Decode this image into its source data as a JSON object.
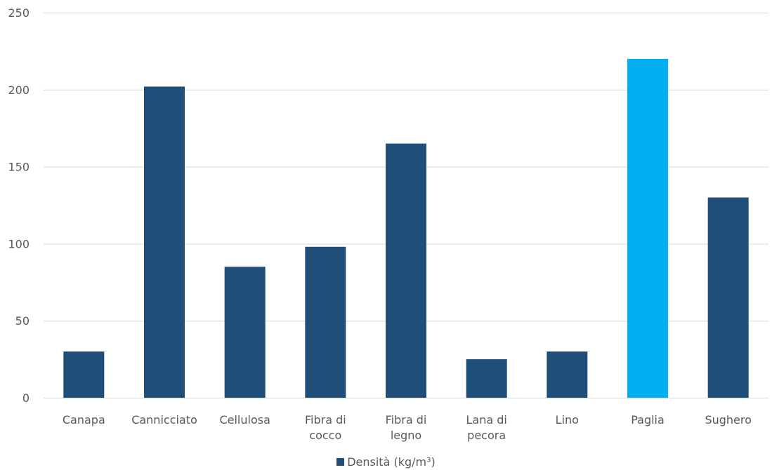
{
  "chart_data": {
    "type": "bar",
    "categories": [
      [
        "Canapa"
      ],
      [
        "Cannicciato"
      ],
      [
        "Cellulosa"
      ],
      [
        "Fibra di",
        "cocco"
      ],
      [
        "Fibra di",
        "legno"
      ],
      [
        "Lana di",
        "pecora"
      ],
      [
        "Lino"
      ],
      [
        "Paglia"
      ],
      [
        "Sughero"
      ]
    ],
    "series": [
      {
        "name": "Densità (kg/m³)",
        "values": [
          30,
          202,
          85,
          98,
          165,
          25,
          30,
          220,
          130
        ]
      }
    ],
    "highlight_index": 7,
    "ylim": [
      0,
      250
    ],
    "yticks": [
      0,
      50,
      100,
      150,
      200,
      250
    ],
    "grid": true,
    "legend_position": "bottom",
    "colors": {
      "bar": "#1f4e79",
      "highlight": "#00b0f0",
      "grid": "#d9d9d9",
      "text": "#595959"
    }
  }
}
